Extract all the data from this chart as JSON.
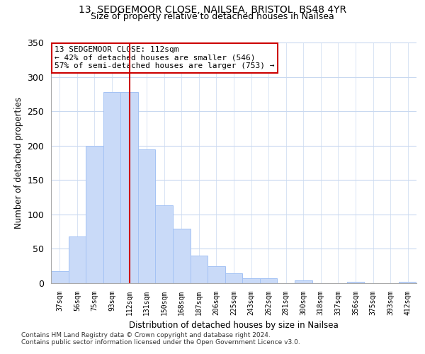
{
  "title1": "13, SEDGEMOOR CLOSE, NAILSEA, BRISTOL, BS48 4YR",
  "title2": "Size of property relative to detached houses in Nailsea",
  "xlabel": "Distribution of detached houses by size in Nailsea",
  "ylabel": "Number of detached properties",
  "bar_labels": [
    "37sqm",
    "56sqm",
    "75sqm",
    "93sqm",
    "112sqm",
    "131sqm",
    "150sqm",
    "168sqm",
    "187sqm",
    "206sqm",
    "225sqm",
    "243sqm",
    "262sqm",
    "281sqm",
    "300sqm",
    "318sqm",
    "337sqm",
    "356sqm",
    "375sqm",
    "393sqm",
    "412sqm"
  ],
  "bar_values": [
    18,
    68,
    200,
    278,
    278,
    195,
    113,
    79,
    40,
    25,
    14,
    7,
    7,
    0,
    4,
    0,
    0,
    2,
    0,
    0,
    2
  ],
  "bar_color": "#c9daf8",
  "bar_edge_color": "#a4c2f4",
  "vline_x_index": 4,
  "vline_color": "#cc0000",
  "annotation_line1": "13 SEDGEMOOR CLOSE: 112sqm",
  "annotation_line2": "← 42% of detached houses are smaller (546)",
  "annotation_line3": "57% of semi-detached houses are larger (753) →",
  "annotation_box_color": "#ffffff",
  "annotation_box_edge": "#cc0000",
  "ylim": [
    0,
    350
  ],
  "yticks": [
    0,
    50,
    100,
    150,
    200,
    250,
    300,
    350
  ],
  "footnote1": "Contains HM Land Registry data © Crown copyright and database right 2024.",
  "footnote2": "Contains public sector information licensed under the Open Government Licence v3.0.",
  "background_color": "#ffffff",
  "grid_color": "#c9d9f0"
}
